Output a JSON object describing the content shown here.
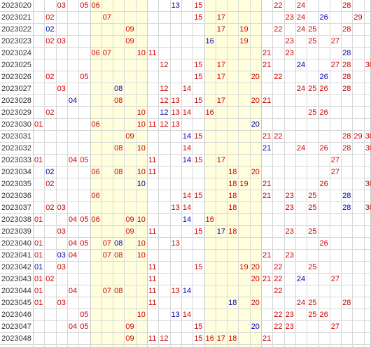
{
  "colors": {
    "red": "#cc0000",
    "blue": "#0000b0",
    "band": "#ffffdd",
    "grid": "#d8d8d8"
  },
  "rows": [
    {
      "period": "2023020",
      "red": [
        "03",
        "05",
        "06",
        "15",
        "22",
        "24",
        "28"
      ],
      "blue": [
        "13"
      ]
    },
    {
      "period": "2023021",
      "red": [
        "02",
        "07",
        "15",
        "17",
        "23",
        "24",
        "29"
      ],
      "blue": [
        "26"
      ]
    },
    {
      "period": "2023022",
      "red": [
        "09",
        "17",
        "19",
        "22",
        "24",
        "25",
        "28"
      ],
      "blue": [
        "02"
      ]
    },
    {
      "period": "2023023",
      "red": [
        "02",
        "03",
        "09",
        "19",
        "23",
        "25",
        "27"
      ],
      "blue": [
        "16"
      ]
    },
    {
      "period": "2023024",
      "red": [
        "06",
        "07",
        "10",
        "11",
        "21",
        "23"
      ],
      "blue": [
        "28"
      ]
    },
    {
      "period": "2023025",
      "red": [
        "12",
        "15",
        "17",
        "21",
        "27",
        "28",
        "30"
      ],
      "blue": [
        "24"
      ]
    },
    {
      "period": "2023026",
      "red": [
        "02",
        "05",
        "15",
        "17",
        "20",
        "22",
        "28"
      ],
      "blue": [
        "26"
      ]
    },
    {
      "period": "2023027",
      "red": [
        "03",
        "12",
        "14",
        "24",
        "25",
        "26",
        "28"
      ],
      "blue": [
        "08"
      ]
    },
    {
      "period": "2023028",
      "red": [
        "08",
        "12",
        "13",
        "15",
        "17",
        "20",
        "21"
      ],
      "blue": [
        "04"
      ]
    },
    {
      "period": "2023029",
      "red": [
        "02",
        "10",
        "13",
        "14",
        "16",
        "25",
        "26"
      ],
      "blue": [
        "12"
      ]
    },
    {
      "period": "2023030",
      "red": [
        "01",
        "06",
        "10",
        "11",
        "12",
        "13"
      ],
      "blue": [
        "20"
      ]
    },
    {
      "period": "2023031",
      "red": [
        "09",
        "15",
        "21",
        "22",
        "28",
        "29",
        "30"
      ],
      "blue": [
        "14"
      ]
    },
    {
      "period": "2023032",
      "red": [
        "08",
        "10",
        "14",
        "24",
        "26",
        "28",
        "30"
      ],
      "blue": [
        "21"
      ]
    },
    {
      "period": "2023033",
      "red": [
        "01",
        "04",
        "05",
        "11",
        "15",
        "17",
        "27"
      ],
      "blue": [
        "14"
      ]
    },
    {
      "period": "2023034",
      "red": [
        "06",
        "08",
        "10",
        "11",
        "18",
        "20",
        "27"
      ],
      "blue": [
        "02"
      ]
    },
    {
      "period": "2023035",
      "red": [
        "02",
        "18",
        "19",
        "21",
        "26",
        "30"
      ],
      "blue": [
        "10"
      ]
    },
    {
      "period": "2023036",
      "red": [
        "06",
        "14",
        "15",
        "18",
        "21",
        "23",
        "25"
      ],
      "blue": [
        "28"
      ]
    },
    {
      "period": "2023037",
      "red": [
        "02",
        "03",
        "13",
        "14",
        "18",
        "23",
        "25",
        "30"
      ],
      "blue": [
        "28"
      ]
    },
    {
      "period": "2023038",
      "red": [
        "01",
        "04",
        "05",
        "06",
        "09",
        "10",
        "16"
      ],
      "blue": [
        "14"
      ]
    },
    {
      "period": "2023039",
      "red": [
        "03",
        "09",
        "11",
        "15",
        "18",
        "23",
        "25"
      ],
      "blue": [
        "17"
      ]
    },
    {
      "period": "2023040",
      "red": [
        "01",
        "04",
        "05",
        "07",
        "10",
        "13",
        "26"
      ],
      "blue": [
        "08"
      ]
    },
    {
      "period": "2023041",
      "red": [
        "01",
        "04",
        "07",
        "08",
        "10",
        "21",
        "23"
      ],
      "blue": [
        "03"
      ]
    },
    {
      "period": "2023042",
      "red": [
        "03",
        "11",
        "15",
        "19",
        "20",
        "22",
        "25"
      ],
      "blue": [
        "01"
      ]
    },
    {
      "period": "2023043",
      "red": [
        "01",
        "02",
        "11",
        "20",
        "21",
        "22",
        "27"
      ],
      "blue": [
        "24"
      ]
    },
    {
      "period": "2023044",
      "red": [
        "01",
        "04",
        "07",
        "08",
        "11",
        "13",
        "22"
      ],
      "blue": [
        "14"
      ]
    },
    {
      "period": "2023045",
      "red": [
        "01",
        "03",
        "11",
        "20",
        "24",
        "25",
        "28"
      ],
      "blue": [
        "18"
      ]
    },
    {
      "period": "2023046",
      "red": [
        "05",
        "10",
        "14",
        "22",
        "23",
        "25",
        "26"
      ],
      "blue": [
        "13"
      ]
    },
    {
      "period": "2023047",
      "red": [
        "04",
        "05",
        "09",
        "15",
        "22",
        "23",
        "27"
      ],
      "blue": [
        "20"
      ]
    },
    {
      "period": "2023048",
      "red": [
        "09",
        "11",
        "12",
        "15",
        "16",
        "17",
        "18",
        "21"
      ],
      "blue": []
    }
  ]
}
